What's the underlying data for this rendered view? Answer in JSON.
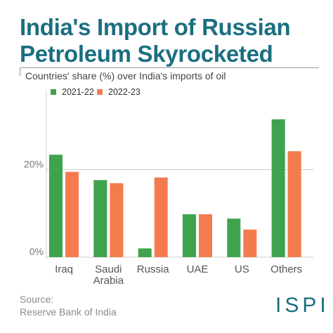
{
  "title_line1": "India's Import of Russian",
  "title_line2": "Petroleum Skyrocketed",
  "subtitle": "Countries' share (%) over India's imports of oil",
  "source_label": "Source:",
  "source_text": "Reserve Bank of India",
  "logo": "ISPI",
  "colors": {
    "title": "#1a6f80",
    "series1": "#3fa34d",
    "series2": "#f37b4d"
  },
  "chart_data": {
    "type": "bar",
    "categories": [
      [
        "Iraq"
      ],
      [
        "Saudi",
        "Arabia"
      ],
      [
        "Russia"
      ],
      [
        "UAE"
      ],
      [
        "US"
      ],
      [
        "Others"
      ]
    ],
    "series": [
      {
        "name": "2021-22",
        "values": [
          23.4,
          17.6,
          2.0,
          9.8,
          8.8,
          31.5
        ]
      },
      {
        "name": "2022-23",
        "values": [
          19.5,
          16.9,
          18.2,
          9.8,
          6.3,
          24.2
        ]
      }
    ],
    "yticks": [
      0,
      20
    ],
    "ytick_labels": [
      "0%",
      "20%"
    ],
    "ylim": [
      0,
      35
    ],
    "legend_position": "top-left",
    "grid": true
  }
}
